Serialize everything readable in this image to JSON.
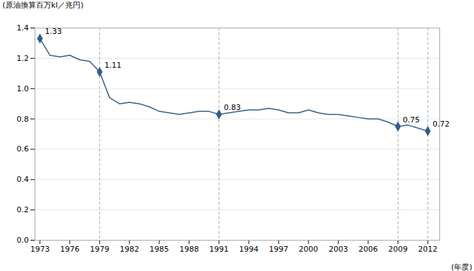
{
  "chart_data": {
    "type": "line",
    "x": [
      1973,
      1974,
      1975,
      1976,
      1977,
      1978,
      1979,
      1980,
      1981,
      1982,
      1983,
      1984,
      1985,
      1986,
      1987,
      1988,
      1989,
      1990,
      1991,
      1992,
      1993,
      1994,
      1995,
      1996,
      1997,
      1998,
      1999,
      2000,
      2001,
      2002,
      2003,
      2004,
      2005,
      2006,
      2007,
      2008,
      2009,
      2010,
      2011,
      2012
    ],
    "values": [
      1.33,
      1.22,
      1.21,
      1.22,
      1.19,
      1.18,
      1.11,
      0.94,
      0.9,
      0.91,
      0.9,
      0.88,
      0.85,
      0.84,
      0.83,
      0.84,
      0.85,
      0.85,
      0.83,
      0.84,
      0.85,
      0.86,
      0.86,
      0.87,
      0.86,
      0.84,
      0.84,
      0.86,
      0.84,
      0.83,
      0.83,
      0.82,
      0.81,
      0.8,
      0.8,
      0.78,
      0.75,
      0.76,
      0.74,
      0.72
    ],
    "color": "#2e5f8a",
    "marker": "diamond",
    "xlabel": "(年度)",
    "ylabel": "(原油換算百万kl／兆円)",
    "xlim": [
      1972.5,
      2013.2
    ],
    "xticks": [
      1973,
      1976,
      1979,
      1982,
      1985,
      1988,
      1991,
      1994,
      1997,
      2000,
      2003,
      2006,
      2009,
      2012
    ],
    "ylim": [
      0.0,
      1.4
    ],
    "yticks": [
      {
        "value": 0.0,
        "label": "0.0"
      },
      0.2,
      0.4,
      0.6,
      0.8,
      {
        "value": 1.0,
        "label": "1.0"
      },
      1.2,
      1.4
    ],
    "grid": true,
    "annotations": [
      {
        "x": 1973,
        "y": 1.33,
        "text": "1.33"
      },
      {
        "x": 1979,
        "y": 1.11,
        "text": "1.11"
      },
      {
        "x": 1991,
        "y": 0.83,
        "text": "0.83"
      },
      {
        "x": 2009,
        "y": 0.75,
        "text": "0.75"
      },
      {
        "x": 2012,
        "y": 0.72,
        "text": "0.72"
      }
    ],
    "reference_lines_x": [
      1979,
      1991,
      2009,
      2012
    ]
  }
}
